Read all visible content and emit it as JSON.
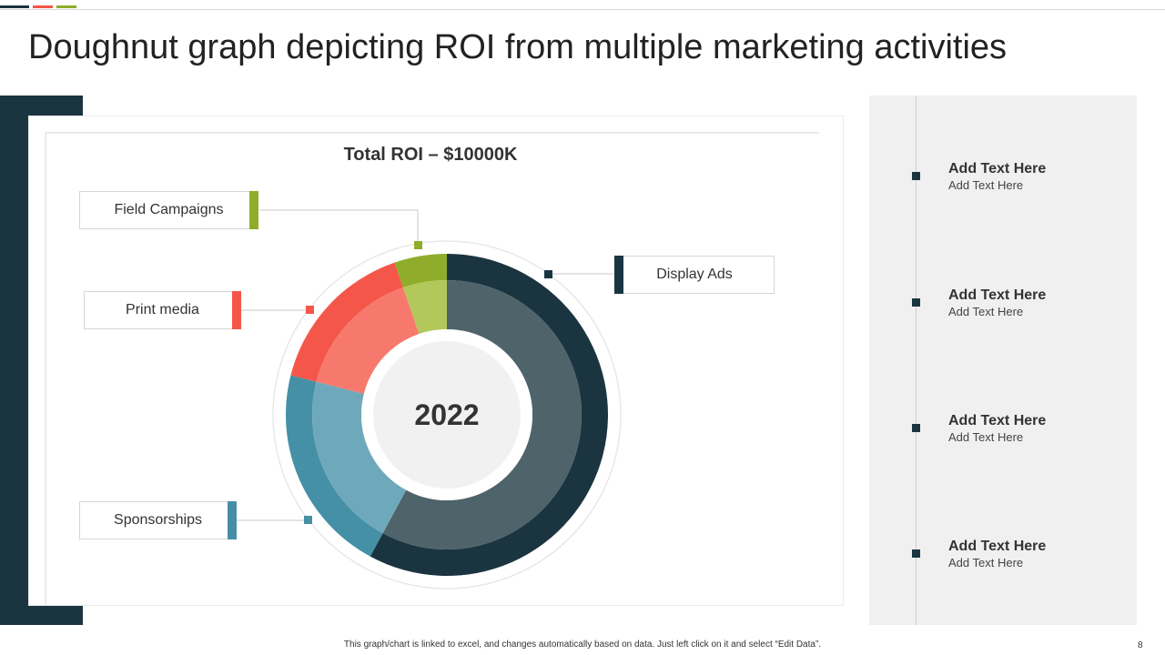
{
  "title": "Doughnut graph depicting ROI from multiple marketing activities",
  "colors": {
    "dark": "#1b3540",
    "dark_inner": "#4f636b",
    "field": "#8fad2b",
    "field_inner": "#b3c85a",
    "print": "#f4574a",
    "print_inner": "#f7796d",
    "sponsor": "#4590a6",
    "sponsor_inner": "#6ea9bb",
    "accents": [
      "#1b3540",
      "#f4574a",
      "#8fad2b"
    ]
  },
  "chart_data": {
    "type": "pie",
    "title": "Total ROI – $10000K",
    "center_label": "2022",
    "categories": [
      "Display Ads",
      "Sponsorships",
      "Print media",
      "Field Campaigns"
    ],
    "values": [
      55,
      20,
      15,
      5
    ]
  },
  "timeline": [
    {
      "title": "Add Text Here",
      "sub": "Add Text Here"
    },
    {
      "title": "Add Text Here",
      "sub": "Add Text Here"
    },
    {
      "title": "Add Text Here",
      "sub": "Add Text Here"
    },
    {
      "title": "Add Text Here",
      "sub": "Add Text Here"
    }
  ],
  "footer_note": "This graph/chart is linked to excel, and changes automatically based on data. Just left click on it and select “Edit Data”.",
  "page_number": "8"
}
